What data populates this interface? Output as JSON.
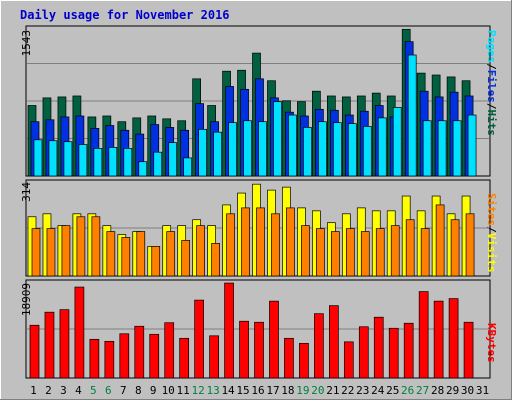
{
  "chart_data": {
    "type": "bar",
    "title": "Daily usage for November 2016",
    "categories": [
      "1",
      "2",
      "3",
      "4",
      "5",
      "6",
      "7",
      "8",
      "9",
      "10",
      "11",
      "12",
      "13",
      "14",
      "15",
      "16",
      "17",
      "18",
      "19",
      "20",
      "21",
      "22",
      "23",
      "24",
      "25",
      "26",
      "27",
      "28",
      "29",
      "30",
      "31"
    ],
    "weekend_days": [
      "5",
      "6",
      "12",
      "13",
      "19",
      "20",
      "26",
      "27"
    ],
    "panels": [
      {
        "name": "hits-files-pages",
        "ymax_label": "1543",
        "ymax": 1543,
        "legend": [
          "Pages",
          "/",
          "Files",
          "/",
          "Hits"
        ],
        "series": [
          {
            "name": "Hits",
            "color": "#006040",
            "values": [
              740,
              820,
              830,
              840,
              620,
              630,
              570,
              610,
              630,
              600,
              580,
              1020,
              740,
              1100,
              1110,
              1290,
              1000,
              790,
              780,
              890,
              840,
              830,
              840,
              870,
              840,
              1540,
              1080,
              1060,
              1040,
              1000,
              0
            ]
          },
          {
            "name": "Files",
            "color": "#0030e0",
            "values": [
              570,
              590,
              620,
              630,
              500,
              530,
              480,
              440,
              540,
              510,
              480,
              760,
              570,
              940,
              910,
              1020,
              820,
              670,
              630,
              700,
              690,
              640,
              680,
              740,
              620,
              1410,
              890,
              830,
              880,
              840,
              0
            ]
          },
          {
            "name": "Pages",
            "color": "#00e0ff",
            "values": [
              380,
              370,
              360,
              330,
              290,
              300,
              290,
              150,
              250,
              350,
              190,
              490,
              460,
              560,
              580,
              570,
              780,
              640,
              510,
              570,
              560,
              550,
              520,
              610,
              720,
              1270,
              580,
              580,
              580,
              640,
              0
            ]
          }
        ]
      },
      {
        "name": "visits-sites",
        "ymax_label": "314",
        "ymax": 314,
        "legend": [
          "Sites",
          "/",
          "Visits"
        ],
        "series": [
          {
            "name": "Visits",
            "color": "#ffff00",
            "values": [
              200,
              210,
              170,
              210,
              210,
              170,
              140,
              150,
              100,
              170,
              170,
              190,
              170,
              240,
              280,
              310,
              290,
              300,
              230,
              220,
              180,
              210,
              230,
              220,
              220,
              270,
              220,
              270,
              210,
              270,
              0
            ]
          },
          {
            "name": "Sites",
            "color": "#ff8000",
            "values": [
              160,
              160,
              170,
              200,
              200,
              150,
              130,
              150,
              100,
              150,
              120,
              170,
              110,
              210,
              230,
              230,
              210,
              230,
              170,
              160,
              150,
              160,
              150,
              160,
              170,
              190,
              160,
              240,
              190,
              210,
              0
            ]
          }
        ]
      },
      {
        "name": "kbytes",
        "ymax_label": "18909",
        "ymax": 18909,
        "legend": [
          "KBytes"
        ],
        "series": [
          {
            "name": "KBytes",
            "color": "#ff0000",
            "values": [
              10500,
              13100,
              13600,
              18100,
              7700,
              7300,
              8800,
              10300,
              8700,
              11000,
              7900,
              15500,
              8400,
              18900,
              11300,
              11100,
              15300,
              7900,
              6900,
              12800,
              14400,
              7200,
              10200,
              12100,
              9900,
              10900,
              17200,
              15300,
              15800,
              11100,
              0
            ]
          }
        ]
      }
    ]
  }
}
